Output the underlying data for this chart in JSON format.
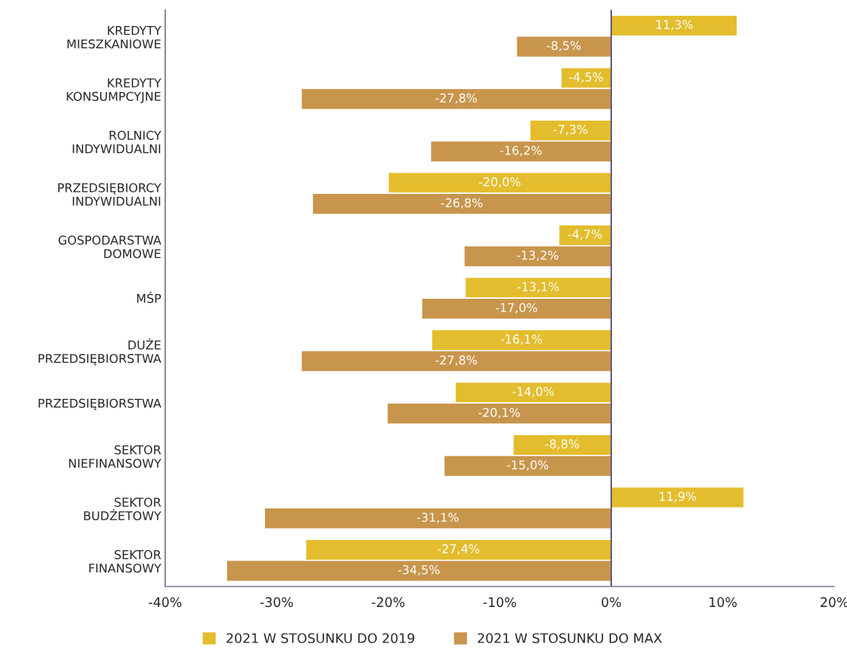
{
  "chart_data": {
    "type": "bar",
    "orientation": "horizontal",
    "categories": [
      "KREDYTY\nMIESZKANIOWE",
      "KREDYTY\nKONSUMPCYJNE",
      "ROLNICY\nINDYWIDUALNI",
      "PRZEDSIĘBIORCY\nINDYWIDUALNI",
      "GOSPODARSTWA\nDOMOWE",
      "MŚP",
      "DUŻE\nPRZEDSIĘBIORSTWA",
      "PRZEDSIĘBIORSTWA",
      "SEKTOR\nNIEFINANSOWY",
      "SEKTOR\nBUDŻETOWY",
      "SEKTOR\nFINANSOWY"
    ],
    "series": [
      {
        "name": "2021 W STOSUNKU DO 2019",
        "color": "#e3bd2d",
        "values": [
          11.3,
          -4.5,
          -7.3,
          -20.0,
          -4.7,
          -13.1,
          -16.1,
          -14.0,
          -8.8,
          11.9,
          -27.4
        ],
        "value_labels": [
          "11,3%",
          "-4,5%",
          "-7,3%",
          "-20,0%",
          "-4,7%",
          "-13,1%",
          "-16,1%",
          "-14,0%",
          "-8,8%",
          "11,9%",
          "-27,4%"
        ]
      },
      {
        "name": "2021 W STOSUNKU DO MAX",
        "color": "#c8954c",
        "values": [
          -8.5,
          -27.8,
          -16.2,
          -26.8,
          -13.2,
          -17.0,
          -27.8,
          -20.1,
          -15.0,
          -31.1,
          -34.5
        ],
        "value_labels": [
          "-8,5%",
          "-27,8%",
          "-16,2%",
          "-26,8%",
          "-13,2%",
          "-17,0%",
          "-27,8%",
          "-20,1%",
          "-15,0%",
          "-31,1%",
          "-34,5%"
        ]
      }
    ],
    "xlim": [
      -40,
      20
    ],
    "xticks": [
      {
        "value": -40,
        "label": "-40%"
      },
      {
        "value": -30,
        "label": "-30%"
      },
      {
        "value": -20,
        "label": "-20%"
      },
      {
        "value": -10,
        "label": "-10%"
      },
      {
        "value": 0,
        "label": "0%"
      },
      {
        "value": 10,
        "label": "10%"
      },
      {
        "value": 20,
        "label": "20%"
      }
    ],
    "ref_lines": [
      {
        "axis": "x",
        "value": 0,
        "color": "#4a3f6b"
      }
    ],
    "legend": "bottom"
  }
}
